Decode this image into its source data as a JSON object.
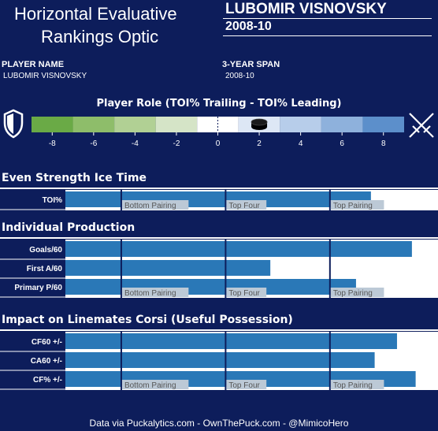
{
  "header": {
    "title_line1": "Horizontal Evaluative",
    "title_line2": "Rankings Optic",
    "player_name": "LUBOMIR VISNOVSKY",
    "span": "2008-10"
  },
  "meta": {
    "player_name_label": "PLAYER NAME",
    "player_name_value": "LUBOMIR VISNOVSKY",
    "span_label": "3-YEAR SPAN",
    "span_value": "2008-10"
  },
  "role_scale": {
    "title": "Player Role (TOI% Trailing - TOI% Leading)",
    "tick_labels": [
      "-8",
      "-6",
      "-4",
      "-2",
      "0",
      "2",
      "4",
      "6",
      "8"
    ],
    "min": -9,
    "max": 9,
    "segments": [
      {
        "from": -9,
        "to": -7,
        "color": "#6aaa46"
      },
      {
        "from": -7,
        "to": -5,
        "color": "#8ebd6a"
      },
      {
        "from": -5,
        "to": -3,
        "color": "#b1d094"
      },
      {
        "from": -3,
        "to": -1,
        "color": "#d5e4c7"
      },
      {
        "from": -1,
        "to": 1,
        "color": "#ffffff"
      },
      {
        "from": 1,
        "to": 3,
        "color": "#dde7f5"
      },
      {
        "from": 3,
        "to": 5,
        "color": "#b7cdea"
      },
      {
        "from": 5,
        "to": 7,
        "color": "#8eb1dc"
      },
      {
        "from": 7,
        "to": 9,
        "color": "#5c8fcb"
      }
    ],
    "player_value": 2,
    "left_icon": "shield-icon",
    "right_icon": "crossed-swords-icon",
    "marker_icon": "puck-icon"
  },
  "sections": {
    "toi": "Even Strength Ice Time",
    "production": "Individual Production",
    "impact": "Impact on Linemates Corsi (Useful Possession)"
  },
  "chart_data": {
    "type": "bar",
    "orientation": "horizontal",
    "scale_unit": "percentile",
    "xlim": [
      0,
      100
    ],
    "thresholds": [
      {
        "label": "Bottom Pairing",
        "value": 15
      },
      {
        "label": "Top Four",
        "value": 43
      },
      {
        "label": "Top Pairing",
        "value": 71
      }
    ],
    "groups": [
      {
        "name": "Even Strength Ice Time",
        "metrics": [
          {
            "label": "TOI%",
            "value": 82
          }
        ]
      },
      {
        "name": "Individual Production",
        "metrics": [
          {
            "label": "Goals/60",
            "value": 93
          },
          {
            "label": "First A/60",
            "value": 55
          },
          {
            "label": "Primary P/60",
            "value": 78
          }
        ]
      },
      {
        "name": "Impact on Linemates Corsi (Useful Possession)",
        "metrics": [
          {
            "label": "CF60 +/-",
            "value": 89
          },
          {
            "label": "CA60 +/-",
            "value": 83
          },
          {
            "label": "CF% +/-",
            "value": 94
          }
        ]
      }
    ]
  },
  "colors": {
    "background": "#0d1d5b",
    "bar": "#2a78b7",
    "panel": "#ffffff",
    "threshold_line": "#0d1d5b",
    "threshold_label_bg": "#bcc9d6"
  },
  "footer": "Data via Puckalytics.com - OwnThePuck.com - @MimicoHero"
}
